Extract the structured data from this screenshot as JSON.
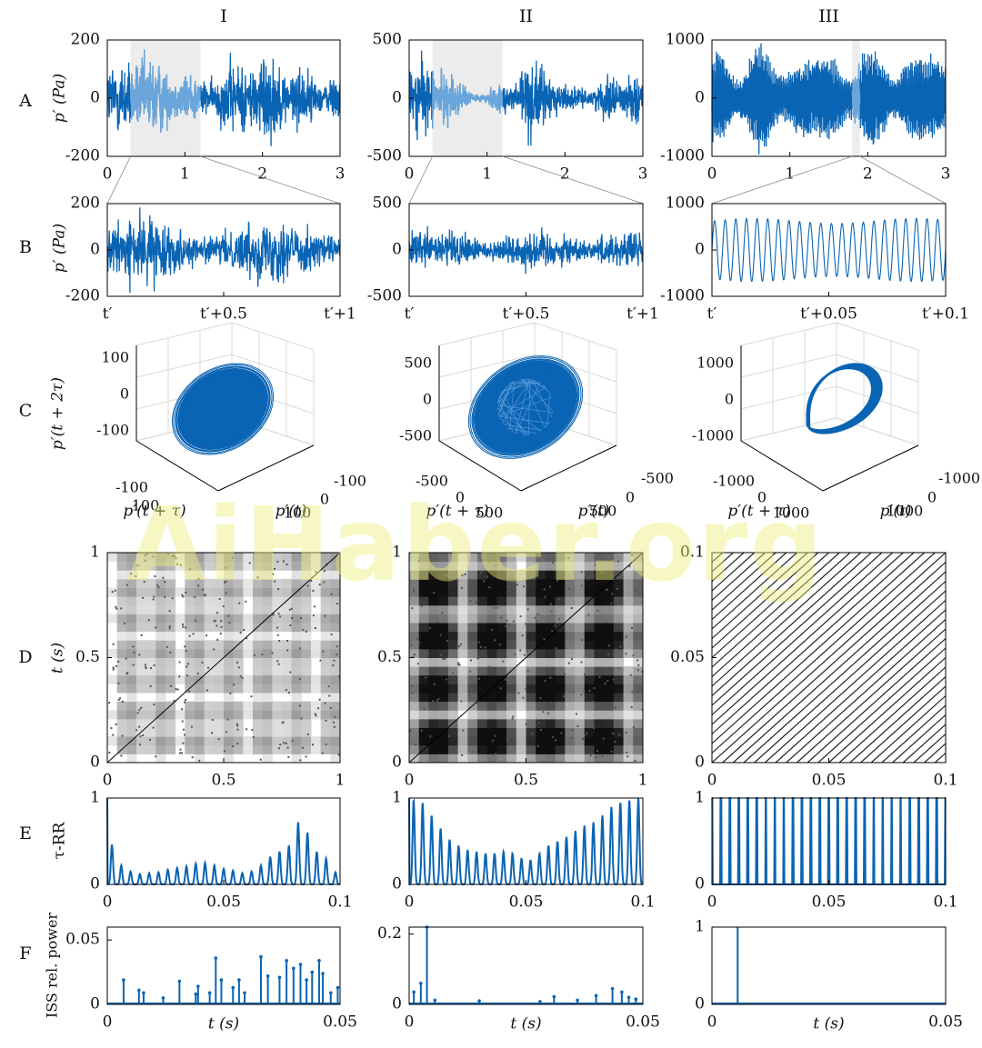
{
  "colors": {
    "series": "#0a64b4",
    "highlight": "#6aa6db",
    "rp": "#222222",
    "shade": "#ececec"
  },
  "watermark": "AiHaber.org",
  "col_headers": [
    "I",
    "II",
    "III"
  ],
  "row_labels": [
    "A",
    "B",
    "C",
    "D",
    "E",
    "F"
  ],
  "row_ylabels": {
    "A": "p′ (Pa)",
    "B": "p′ (Pa)",
    "C": "p′(t + 2τ)",
    "D": "t (s)",
    "E": "τ-RR",
    "F": "ISS rel. power"
  },
  "row_xlabels": {
    "F": "t (s)"
  },
  "phase_labels": {
    "x": "p′(t + τ)",
    "y": "p′(t)"
  },
  "chart_data": [
    {
      "panel": "A-I",
      "type": "line",
      "x_ticks": [
        "0",
        "1",
        "2",
        "3"
      ],
      "y_ticks": [
        "200",
        "0",
        "-200"
      ],
      "xlim": [
        0,
        3
      ],
      "ylim": [
        -200,
        200
      ],
      "amplitude": 125,
      "highlight": [
        0.3,
        1.2
      ],
      "description_series": "broadband pressure signal"
    },
    {
      "panel": "A-II",
      "type": "line",
      "x_ticks": [
        "0",
        "1",
        "2",
        "3"
      ],
      "y_ticks": [
        "500",
        "0",
        "-500"
      ],
      "xlim": [
        0,
        3
      ],
      "ylim": [
        -500,
        500
      ],
      "amplitude": 260,
      "highlight": [
        0.3,
        1.2
      ]
    },
    {
      "panel": "A-III",
      "type": "line",
      "x_ticks": [
        "0",
        "1",
        "2",
        "3"
      ],
      "y_ticks": [
        "1000",
        "0",
        "-1000"
      ],
      "xlim": [
        0,
        3
      ],
      "ylim": [
        -1000,
        1000
      ],
      "amplitude": 780,
      "highlight": [
        1.8,
        1.9
      ]
    },
    {
      "panel": "B-I",
      "type": "line",
      "x_ticks": [
        "t′",
        "t′+0.5",
        "t′+1"
      ],
      "y_ticks": [
        "200",
        "0",
        "-200"
      ],
      "ylim": [
        -200,
        200
      ],
      "amplitude": 130
    },
    {
      "panel": "B-II",
      "type": "line",
      "x_ticks": [
        "t′",
        "t′+0.5",
        "t′+1"
      ],
      "y_ticks": [
        "500",
        "0",
        "-500"
      ],
      "ylim": [
        -500,
        500
      ],
      "amplitude": 200
    },
    {
      "panel": "B-III",
      "type": "line",
      "x_ticks": [
        "t′",
        "t′+0.05",
        "t′+0.1"
      ],
      "y_ticks": [
        "1000",
        "0",
        "-1000"
      ],
      "ylim": [
        -1000,
        1000
      ],
      "amplitude": 680,
      "cycles": 22
    },
    {
      "panel": "C-I",
      "type": "scatter",
      "z_ticks": [
        "100",
        "0",
        "-100"
      ],
      "x_ticks": [
        "-100",
        "100"
      ],
      "y_ticks": [
        "100",
        "0",
        "-100"
      ]
    },
    {
      "panel": "C-II",
      "type": "scatter",
      "z_ticks": [
        "500",
        "0",
        "-500"
      ],
      "x_ticks": [
        "-500",
        "0",
        "500"
      ],
      "y_ticks": [
        "500",
        "0",
        "-500"
      ]
    },
    {
      "panel": "C-III",
      "type": "scatter",
      "z_ticks": [
        "1000",
        "0",
        "-1000"
      ],
      "x_ticks": [
        "-1000",
        "0",
        "1000"
      ],
      "y_ticks": [
        "1000",
        "0",
        "-1000"
      ]
    },
    {
      "panel": "D-I",
      "type": "heatmap",
      "x_ticks": [
        "0",
        "0.5",
        "1"
      ],
      "y_ticks": [
        "1",
        "0.5",
        "0"
      ],
      "xlim": [
        0,
        1
      ],
      "ylim": [
        0,
        1
      ]
    },
    {
      "panel": "D-II",
      "type": "heatmap",
      "x_ticks": [
        "0",
        "0.5",
        "1"
      ],
      "y_ticks": [
        "1",
        "0.5",
        "0"
      ],
      "xlim": [
        0,
        1
      ],
      "ylim": [
        0,
        1
      ]
    },
    {
      "panel": "D-III",
      "type": "heatmap",
      "x_ticks": [
        "0",
        "0.05",
        "0.1"
      ],
      "y_ticks": [
        "0.1",
        "0.05",
        "0"
      ],
      "xlim": [
        0,
        0.1
      ],
      "ylim": [
        0,
        0.1
      ]
    },
    {
      "panel": "E-I",
      "type": "line",
      "x_ticks": [
        "0",
        "0.05",
        "0.1"
      ],
      "y_ticks": [
        "1",
        "0"
      ],
      "xlim": [
        0,
        0.1
      ],
      "ylim": [
        0,
        1
      ],
      "peaks": [
        0.46,
        0.22,
        0.15,
        0.12,
        0.13,
        0.14,
        0.17,
        0.19,
        0.21,
        0.24,
        0.25,
        0.22,
        0.18,
        0.16,
        0.13,
        0.15,
        0.22,
        0.32,
        0.38,
        0.45,
        0.72,
        0.6,
        0.38,
        0.3,
        0.14
      ]
    },
    {
      "panel": "E-II",
      "type": "line",
      "x_ticks": [
        "0",
        "0.05",
        "0.1"
      ],
      "y_ticks": [
        "1",
        "0"
      ],
      "xlim": [
        0,
        0.1
      ],
      "ylim": [
        0,
        1
      ],
      "peaks": [
        0.98,
        0.95,
        0.8,
        0.65,
        0.52,
        0.45,
        0.4,
        0.38,
        0.36,
        0.36,
        0.38,
        0.36,
        0.3,
        0.28,
        0.36,
        0.45,
        0.5,
        0.55,
        0.62,
        0.68,
        0.72,
        0.8,
        0.9,
        0.95,
        0.98,
        1.0
      ]
    },
    {
      "panel": "E-III",
      "type": "line",
      "x_ticks": [
        "0",
        "0.05",
        "0.1"
      ],
      "y_ticks": [
        "1",
        "0"
      ],
      "xlim": [
        0,
        0.1
      ],
      "ylim": [
        0,
        1
      ],
      "peaks_count": 26,
      "peak_value": 1.0
    },
    {
      "panel": "F-I",
      "type": "bar",
      "x_ticks": [
        "0",
        "0.05"
      ],
      "y_ticks": [
        "0.05",
        "0"
      ],
      "xlim": [
        0,
        0.05
      ],
      "ylim": [
        0,
        0.06
      ],
      "spikes": [
        [
          0.0035,
          0.019
        ],
        [
          0.0068,
          0.011
        ],
        [
          0.0078,
          0.009
        ],
        [
          0.012,
          0.005
        ],
        [
          0.0155,
          0.018
        ],
        [
          0.019,
          0.008
        ],
        [
          0.0195,
          0.014
        ],
        [
          0.022,
          0.009
        ],
        [
          0.0233,
          0.036
        ],
        [
          0.0245,
          0.019
        ],
        [
          0.027,
          0.013
        ],
        [
          0.0283,
          0.019
        ],
        [
          0.0295,
          0.009
        ],
        [
          0.033,
          0.037
        ],
        [
          0.0345,
          0.022
        ],
        [
          0.037,
          0.021
        ],
        [
          0.0385,
          0.034
        ],
        [
          0.04,
          0.028
        ],
        [
          0.0415,
          0.031
        ],
        [
          0.0428,
          0.019
        ],
        [
          0.044,
          0.025
        ],
        [
          0.0455,
          0.034
        ],
        [
          0.0463,
          0.024
        ],
        [
          0.048,
          0.009
        ],
        [
          0.0495,
          0.013
        ]
      ]
    },
    {
      "panel": "F-II",
      "type": "bar",
      "x_ticks": [
        "0",
        "0.05"
      ],
      "y_ticks": [
        "0.2",
        "0"
      ],
      "xlim": [
        0,
        0.05
      ],
      "ylim": [
        0,
        0.22
      ],
      "spikes": [
        [
          0.001,
          0.035
        ],
        [
          0.0025,
          0.06
        ],
        [
          0.0038,
          0.22
        ],
        [
          0.0055,
          0.012
        ],
        [
          0.015,
          0.01
        ],
        [
          0.028,
          0.008
        ],
        [
          0.031,
          0.022
        ],
        [
          0.036,
          0.012
        ],
        [
          0.04,
          0.025
        ],
        [
          0.0435,
          0.045
        ],
        [
          0.0455,
          0.035
        ],
        [
          0.047,
          0.02
        ],
        [
          0.0485,
          0.015
        ]
      ]
    },
    {
      "panel": "F-III",
      "type": "bar",
      "x_ticks": [
        "0",
        "0.05"
      ],
      "y_ticks": [
        "1",
        "0"
      ],
      "xlim": [
        0,
        0.05
      ],
      "ylim": [
        0,
        1
      ],
      "spikes": [
        [
          0.0055,
          1.0
        ]
      ]
    }
  ]
}
